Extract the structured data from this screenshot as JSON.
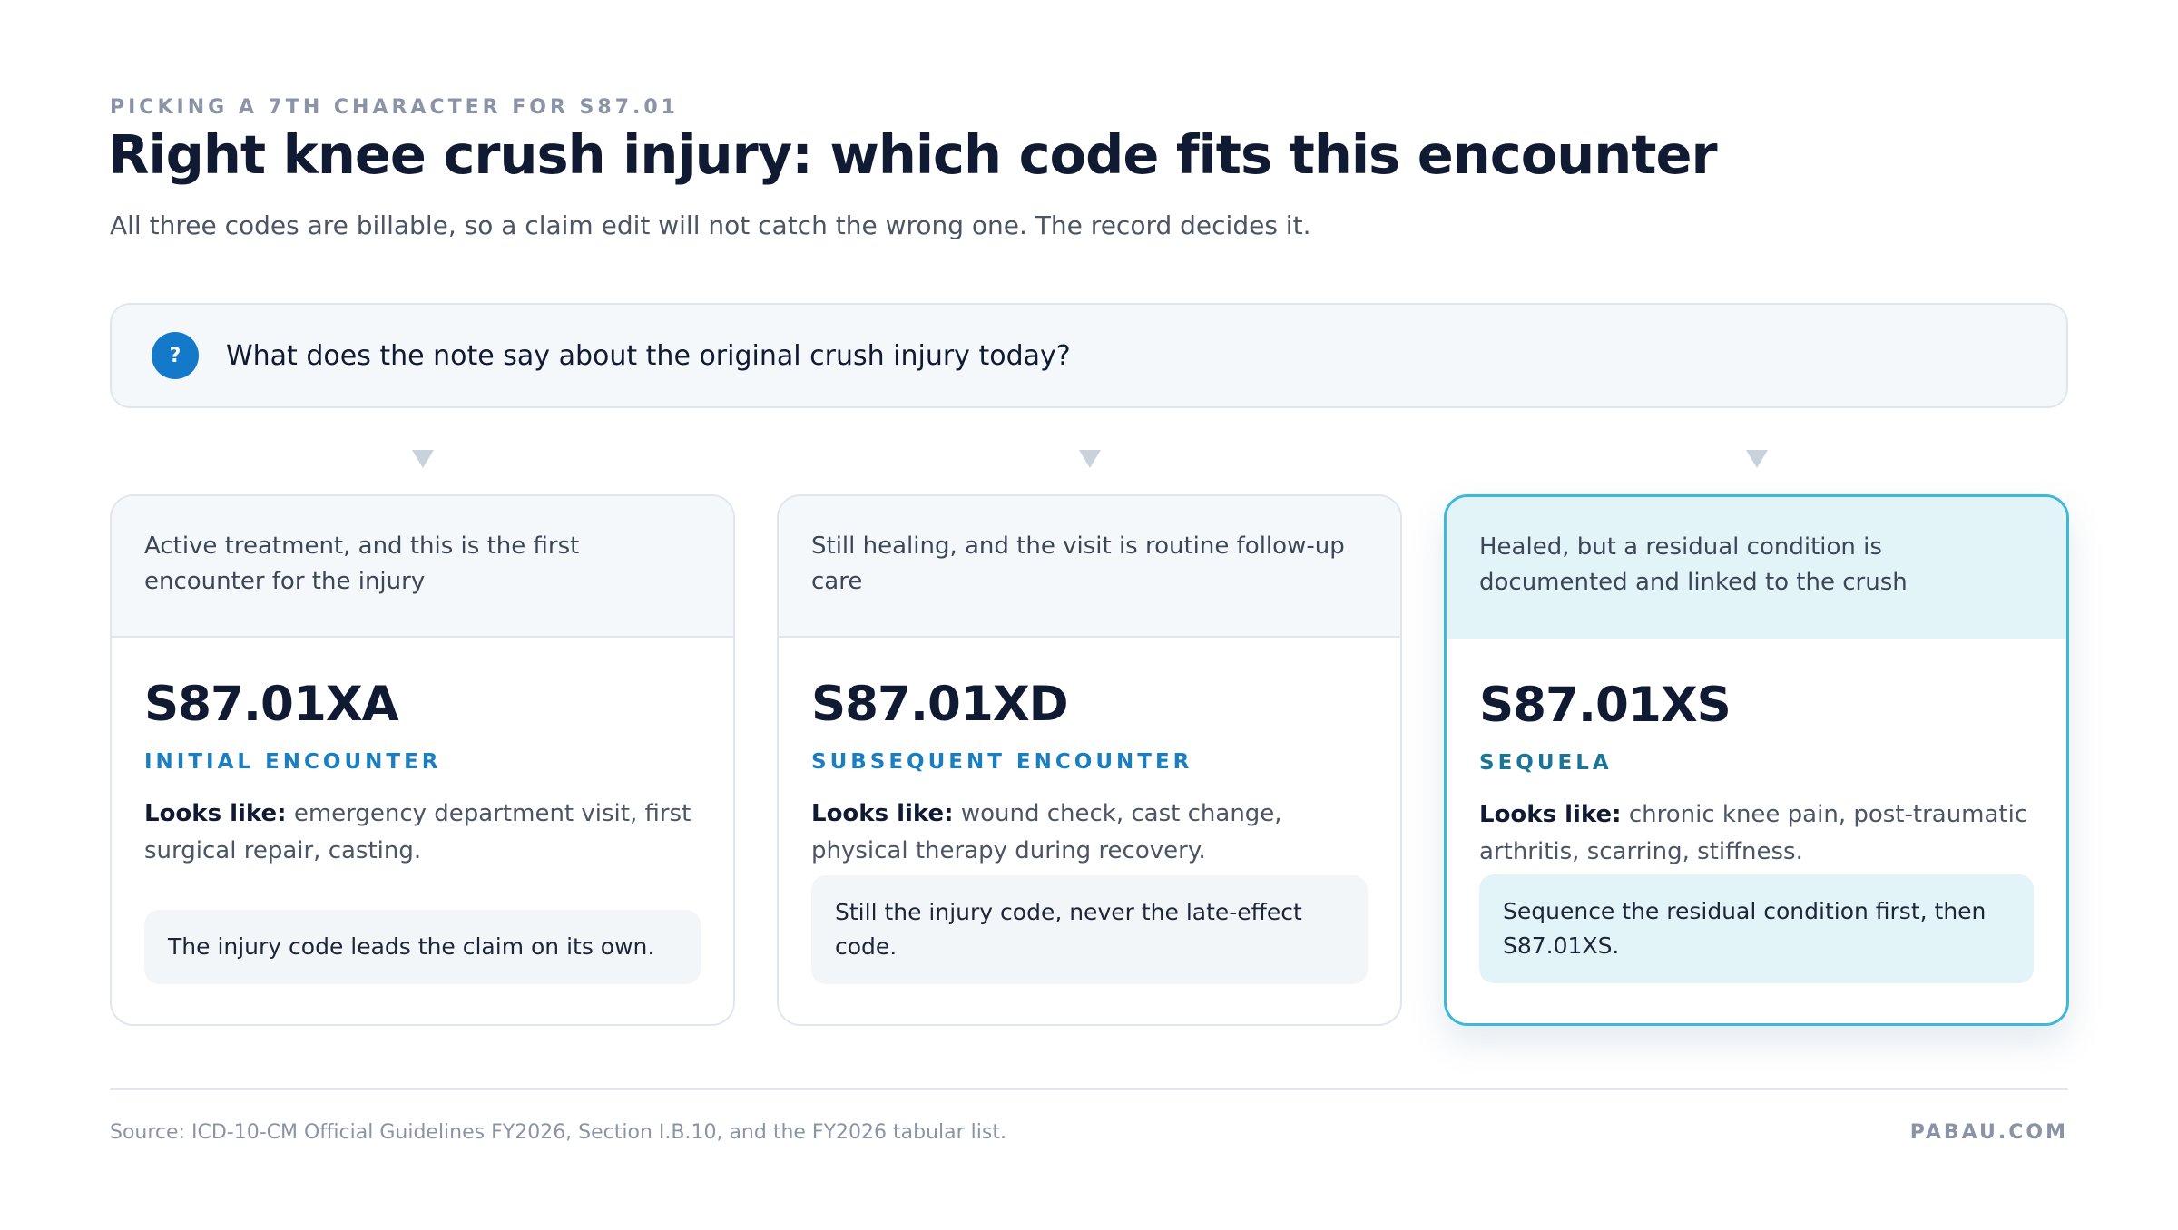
{
  "header": {
    "eyebrow": "PICKING A 7TH CHARACTER FOR S87.01",
    "title": "Right knee crush injury: which code fits this encounter",
    "subtitle": "All three codes are billable, so a claim edit will not catch the wrong one. The record decides it."
  },
  "question": {
    "icon": "?",
    "text": "What does the note say about the original crush injury today?"
  },
  "cards": [
    {
      "condition": "Active treatment, and this is the first encounter for the injury",
      "code": "S87.01XA",
      "label": "INITIAL ENCOUNTER",
      "looks_like_label": "Looks like:",
      "looks_like": "emergency department visit, first surgical repair, casting.",
      "note": "The injury code leads the claim on its own."
    },
    {
      "condition": "Still healing, and the visit is routine follow-up care",
      "code": "S87.01XD",
      "label": "SUBSEQUENT ENCOUNTER",
      "looks_like_label": "Looks like:",
      "looks_like": "wound check, cast change, physical therapy during recovery.",
      "note": "Still the injury code, never the late-effect code."
    },
    {
      "condition": "Healed, but a residual condition is documented and linked to the crush",
      "code": "S87.01XS",
      "label": "SEQUELA",
      "looks_like_label": "Looks like:",
      "looks_like": "chronic knee pain, post-traumatic arthritis, scarring, stiffness.",
      "note": "Sequence the residual condition first, then S87.01XS."
    }
  ],
  "footer": {
    "source": "Source: ICD-10-CM Official Guidelines FY2026, Section I.B.10, and the FY2026 tabular list.",
    "brand": "PABAU.COM"
  }
}
